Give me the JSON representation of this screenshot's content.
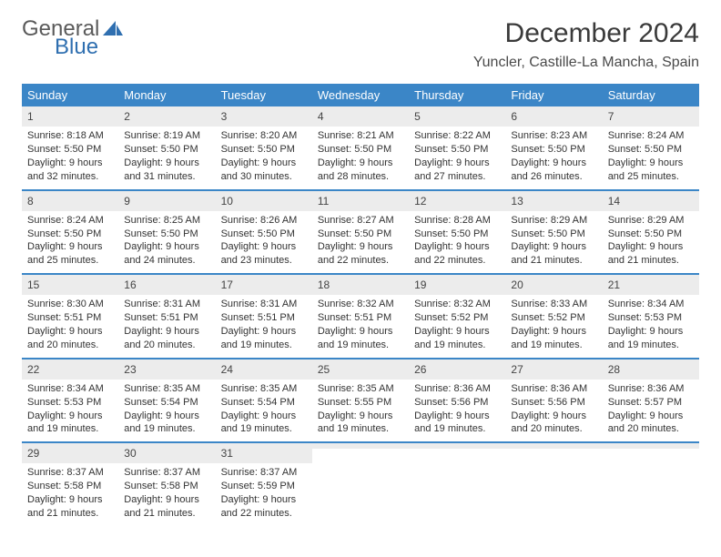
{
  "logo": {
    "text1": "General",
    "text2": "Blue",
    "icon_color": "#2f6fb0"
  },
  "title": "December 2024",
  "location": "Yuncler, Castille-La Mancha, Spain",
  "header_bg": "#3b86c7",
  "daynum_bg": "#ececec",
  "border_color": "#3b86c7",
  "day_names": [
    "Sunday",
    "Monday",
    "Tuesday",
    "Wednesday",
    "Thursday",
    "Friday",
    "Saturday"
  ],
  "weeks": [
    [
      {
        "n": "1",
        "sr": "Sunrise: 8:18 AM",
        "ss": "Sunset: 5:50 PM",
        "dl": "Daylight: 9 hours and 32 minutes."
      },
      {
        "n": "2",
        "sr": "Sunrise: 8:19 AM",
        "ss": "Sunset: 5:50 PM",
        "dl": "Daylight: 9 hours and 31 minutes."
      },
      {
        "n": "3",
        "sr": "Sunrise: 8:20 AM",
        "ss": "Sunset: 5:50 PM",
        "dl": "Daylight: 9 hours and 30 minutes."
      },
      {
        "n": "4",
        "sr": "Sunrise: 8:21 AM",
        "ss": "Sunset: 5:50 PM",
        "dl": "Daylight: 9 hours and 28 minutes."
      },
      {
        "n": "5",
        "sr": "Sunrise: 8:22 AM",
        "ss": "Sunset: 5:50 PM",
        "dl": "Daylight: 9 hours and 27 minutes."
      },
      {
        "n": "6",
        "sr": "Sunrise: 8:23 AM",
        "ss": "Sunset: 5:50 PM",
        "dl": "Daylight: 9 hours and 26 minutes."
      },
      {
        "n": "7",
        "sr": "Sunrise: 8:24 AM",
        "ss": "Sunset: 5:50 PM",
        "dl": "Daylight: 9 hours and 25 minutes."
      }
    ],
    [
      {
        "n": "8",
        "sr": "Sunrise: 8:24 AM",
        "ss": "Sunset: 5:50 PM",
        "dl": "Daylight: 9 hours and 25 minutes."
      },
      {
        "n": "9",
        "sr": "Sunrise: 8:25 AM",
        "ss": "Sunset: 5:50 PM",
        "dl": "Daylight: 9 hours and 24 minutes."
      },
      {
        "n": "10",
        "sr": "Sunrise: 8:26 AM",
        "ss": "Sunset: 5:50 PM",
        "dl": "Daylight: 9 hours and 23 minutes."
      },
      {
        "n": "11",
        "sr": "Sunrise: 8:27 AM",
        "ss": "Sunset: 5:50 PM",
        "dl": "Daylight: 9 hours and 22 minutes."
      },
      {
        "n": "12",
        "sr": "Sunrise: 8:28 AM",
        "ss": "Sunset: 5:50 PM",
        "dl": "Daylight: 9 hours and 22 minutes."
      },
      {
        "n": "13",
        "sr": "Sunrise: 8:29 AM",
        "ss": "Sunset: 5:50 PM",
        "dl": "Daylight: 9 hours and 21 minutes."
      },
      {
        "n": "14",
        "sr": "Sunrise: 8:29 AM",
        "ss": "Sunset: 5:50 PM",
        "dl": "Daylight: 9 hours and 21 minutes."
      }
    ],
    [
      {
        "n": "15",
        "sr": "Sunrise: 8:30 AM",
        "ss": "Sunset: 5:51 PM",
        "dl": "Daylight: 9 hours and 20 minutes."
      },
      {
        "n": "16",
        "sr": "Sunrise: 8:31 AM",
        "ss": "Sunset: 5:51 PM",
        "dl": "Daylight: 9 hours and 20 minutes."
      },
      {
        "n": "17",
        "sr": "Sunrise: 8:31 AM",
        "ss": "Sunset: 5:51 PM",
        "dl": "Daylight: 9 hours and 19 minutes."
      },
      {
        "n": "18",
        "sr": "Sunrise: 8:32 AM",
        "ss": "Sunset: 5:51 PM",
        "dl": "Daylight: 9 hours and 19 minutes."
      },
      {
        "n": "19",
        "sr": "Sunrise: 8:32 AM",
        "ss": "Sunset: 5:52 PM",
        "dl": "Daylight: 9 hours and 19 minutes."
      },
      {
        "n": "20",
        "sr": "Sunrise: 8:33 AM",
        "ss": "Sunset: 5:52 PM",
        "dl": "Daylight: 9 hours and 19 minutes."
      },
      {
        "n": "21",
        "sr": "Sunrise: 8:34 AM",
        "ss": "Sunset: 5:53 PM",
        "dl": "Daylight: 9 hours and 19 minutes."
      }
    ],
    [
      {
        "n": "22",
        "sr": "Sunrise: 8:34 AM",
        "ss": "Sunset: 5:53 PM",
        "dl": "Daylight: 9 hours and 19 minutes."
      },
      {
        "n": "23",
        "sr": "Sunrise: 8:35 AM",
        "ss": "Sunset: 5:54 PM",
        "dl": "Daylight: 9 hours and 19 minutes."
      },
      {
        "n": "24",
        "sr": "Sunrise: 8:35 AM",
        "ss": "Sunset: 5:54 PM",
        "dl": "Daylight: 9 hours and 19 minutes."
      },
      {
        "n": "25",
        "sr": "Sunrise: 8:35 AM",
        "ss": "Sunset: 5:55 PM",
        "dl": "Daylight: 9 hours and 19 minutes."
      },
      {
        "n": "26",
        "sr": "Sunrise: 8:36 AM",
        "ss": "Sunset: 5:56 PM",
        "dl": "Daylight: 9 hours and 19 minutes."
      },
      {
        "n": "27",
        "sr": "Sunrise: 8:36 AM",
        "ss": "Sunset: 5:56 PM",
        "dl": "Daylight: 9 hours and 20 minutes."
      },
      {
        "n": "28",
        "sr": "Sunrise: 8:36 AM",
        "ss": "Sunset: 5:57 PM",
        "dl": "Daylight: 9 hours and 20 minutes."
      }
    ],
    [
      {
        "n": "29",
        "sr": "Sunrise: 8:37 AM",
        "ss": "Sunset: 5:58 PM",
        "dl": "Daylight: 9 hours and 21 minutes."
      },
      {
        "n": "30",
        "sr": "Sunrise: 8:37 AM",
        "ss": "Sunset: 5:58 PM",
        "dl": "Daylight: 9 hours and 21 minutes."
      },
      {
        "n": "31",
        "sr": "Sunrise: 8:37 AM",
        "ss": "Sunset: 5:59 PM",
        "dl": "Daylight: 9 hours and 22 minutes."
      },
      null,
      null,
      null,
      null
    ]
  ]
}
